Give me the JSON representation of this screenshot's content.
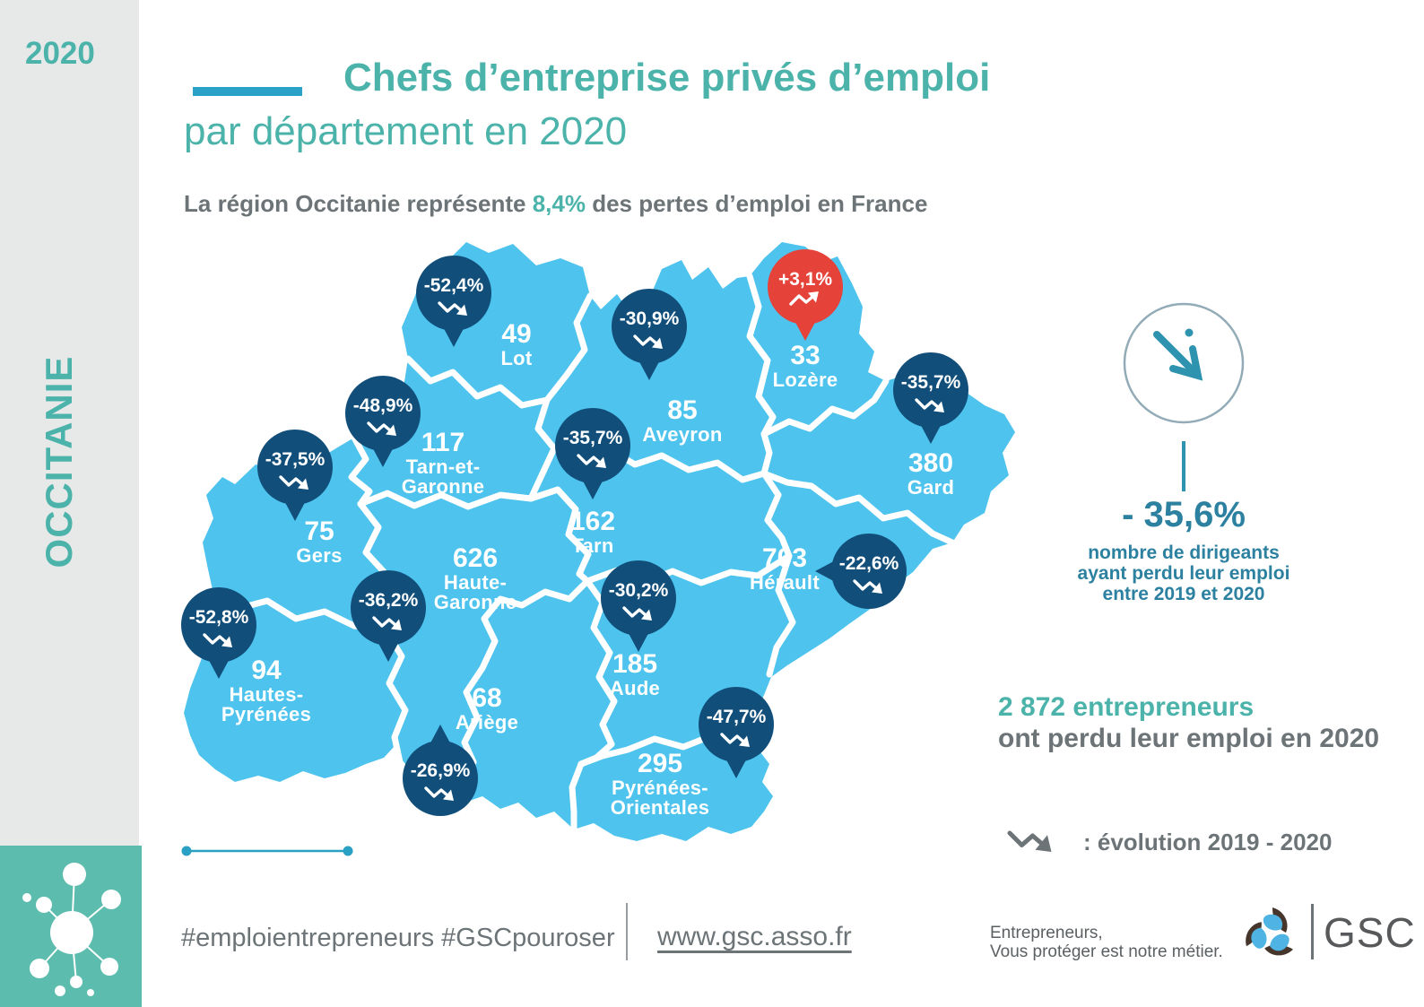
{
  "year_label": "2020",
  "region_label": "OCCITANIE",
  "title_line1": "Chefs d’entreprise privés d’emploi",
  "title_line2": "par département en 2020",
  "subtitle": {
    "prefix": "La région Occitanie représente ",
    "highlight": "8,4%",
    "suffix": " des pertes d’emploi en France"
  },
  "map": {
    "region_fill": "#4DC3EE",
    "badge_color_negative": "#114E7A",
    "badge_color_positive": "#E5423A",
    "departments": [
      {
        "id": "lot",
        "count": "49",
        "name_lines": [
          "Lot"
        ],
        "evolution": "-52,4%",
        "trend": "down"
      },
      {
        "id": "tarn-et-garonne",
        "count": "117",
        "name_lines": [
          "Tarn-et-",
          "Garonne"
        ],
        "evolution": "-48,9%",
        "trend": "down"
      },
      {
        "id": "aveyron",
        "count": "85",
        "name_lines": [
          "Aveyron"
        ],
        "evolution": "-30,9%",
        "trend": "down"
      },
      {
        "id": "lozere",
        "count": "33",
        "name_lines": [
          "Lozère"
        ],
        "evolution": "+3,1%",
        "trend": "up"
      },
      {
        "id": "gard",
        "count": "380",
        "name_lines": [
          "Gard"
        ],
        "evolution": "-35,7%",
        "trend": "down"
      },
      {
        "id": "tarn",
        "count": "162",
        "name_lines": [
          "Tarn"
        ],
        "evolution": "-35,7%",
        "trend": "down"
      },
      {
        "id": "gers",
        "count": "75",
        "name_lines": [
          "Gers"
        ],
        "evolution": "-37,5%",
        "trend": "down"
      },
      {
        "id": "haute-garonne",
        "count": "626",
        "name_lines": [
          "Haute-",
          "Garonne"
        ],
        "evolution": "-36,2%",
        "trend": "down"
      },
      {
        "id": "herault",
        "count": "703",
        "name_lines": [
          "Hérault"
        ],
        "evolution": "-22,6%",
        "trend": "down"
      },
      {
        "id": "aude",
        "count": "185",
        "name_lines": [
          "Aude"
        ],
        "evolution": "-30,2%",
        "trend": "down"
      },
      {
        "id": "hautes-pyrenees",
        "count": "94",
        "name_lines": [
          "Hautes-",
          "Pyrénées"
        ],
        "evolution": "-52,8%",
        "trend": "down"
      },
      {
        "id": "ariege",
        "count": "68",
        "name_lines": [
          "Ariège"
        ],
        "evolution": "-26,9%",
        "trend": "down"
      },
      {
        "id": "pyrenees-orientales",
        "count": "295",
        "name_lines": [
          "Pyrénées-",
          "Orientales"
        ],
        "evolution": "-47,7%",
        "trend": "down"
      }
    ]
  },
  "stats_panel": {
    "percent": "- 35,6%",
    "description_lines": [
      "nombre de dirigeants",
      "ayant perdu leur emploi",
      "entre 2019 et 2020"
    ]
  },
  "entrepreneurs": {
    "highlight": "2 872 entrepreneurs",
    "rest": "ont perdu leur emploi en 2020"
  },
  "legend": {
    "text": ": évolution 2019 - 2020"
  },
  "footer": {
    "hashtags": "#emploientrepreneurs #GSCpouroser",
    "website": "www.gsc.asso.fr",
    "tagline_lines": [
      "Entrepreneurs,",
      "Vous protéger est notre métier."
    ],
    "brand": "GSC"
  }
}
